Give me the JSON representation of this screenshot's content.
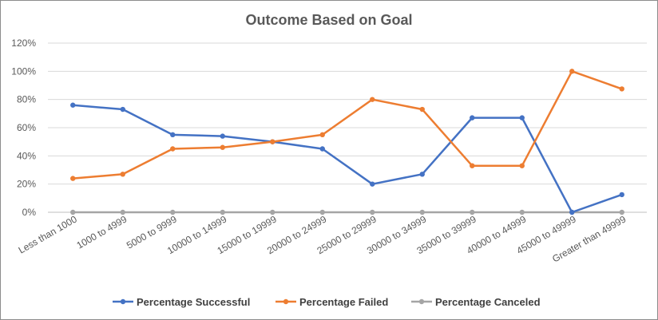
{
  "chart_data": {
    "type": "line",
    "title": "Outcome Based on Goal",
    "xlabel": "",
    "ylabel": "",
    "categories": [
      "Less than 1000",
      "1000 to 4999",
      "5000 to 9999",
      "10000 to 14999",
      "15000 to 19999",
      "20000 to 24999",
      "25000 to 29999",
      "30000 to 34999",
      "35000 to 39999",
      "40000 to 44999",
      "45000 to 49999",
      "Greater than 49999"
    ],
    "y_ticks": [
      "0%",
      "20%",
      "40%",
      "60%",
      "80%",
      "100%",
      "120%"
    ],
    "ylim": [
      0,
      1.2
    ],
    "grid": true,
    "legend_position": "bottom",
    "series": [
      {
        "name": "Percentage Successful",
        "color": "#4472C4",
        "values": [
          0.76,
          0.73,
          0.55,
          0.54,
          0.5,
          0.45,
          0.2,
          0.27,
          0.67,
          0.67,
          0.0,
          0.125
        ]
      },
      {
        "name": "Percentage Failed",
        "color": "#ED7D31",
        "values": [
          0.24,
          0.27,
          0.45,
          0.46,
          0.5,
          0.55,
          0.8,
          0.73,
          0.33,
          0.33,
          1.0,
          0.875
        ]
      },
      {
        "name": "Percentage Canceled",
        "color": "#A5A5A5",
        "values": [
          0,
          0,
          0,
          0,
          0,
          0,
          0,
          0,
          0,
          0,
          0,
          0
        ]
      }
    ]
  }
}
